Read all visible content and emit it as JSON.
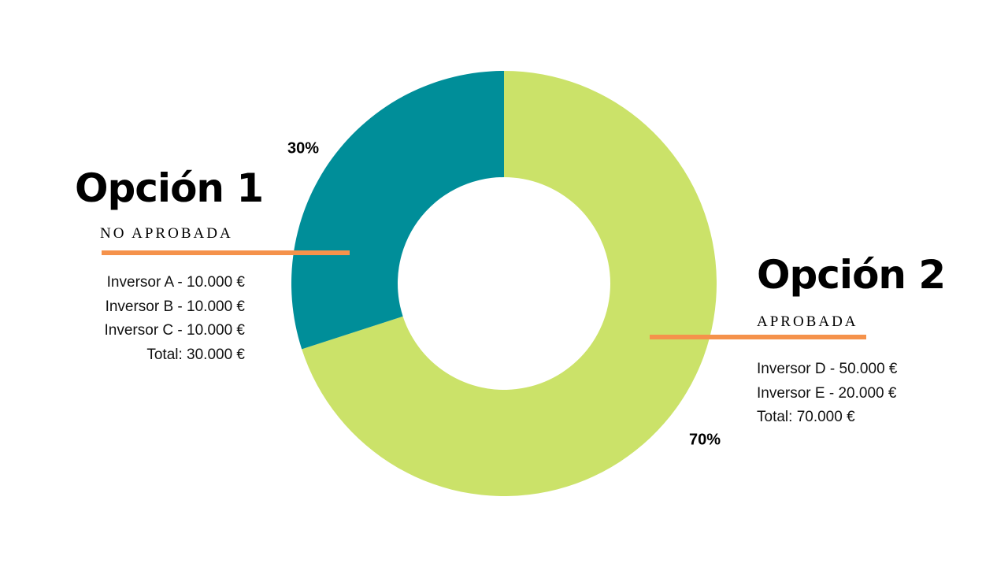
{
  "chart_data": {
    "type": "pie",
    "donut": true,
    "slices": [
      {
        "name": "Opción 2",
        "value": 70,
        "label": "70%",
        "color": "#cbe269"
      },
      {
        "name": "Opción 1",
        "value": 30,
        "label": "30%",
        "color": "#008e99"
      }
    ],
    "start": "top",
    "direction": "clockwise"
  },
  "colors": {
    "accent_rule": "#f5924b",
    "text": "#000000"
  },
  "option1": {
    "title": "Opción 1",
    "status": "NO APROBADA",
    "items": [
      "Inversor A - 10.000 €",
      "Inversor B - 10.000 €",
      "Inversor C - 10.000 €",
      "Total: 30.000 €"
    ]
  },
  "option2": {
    "title": "Opción 2",
    "status": "APROBADA",
    "items": [
      "Inversor D - 50.000 €",
      "Inversor E - 20.000 €",
      "Total: 70.000 €"
    ]
  }
}
